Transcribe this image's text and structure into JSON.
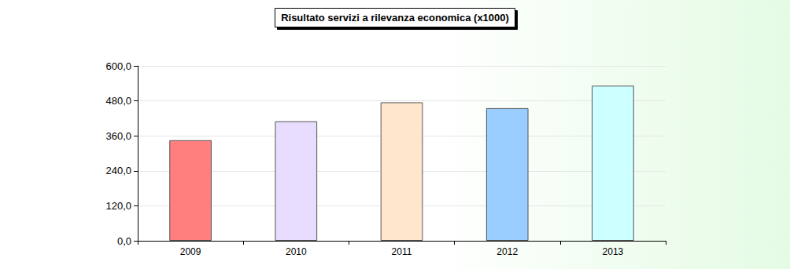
{
  "chart_data": {
    "type": "bar",
    "title": "Risultato servizi a rilevanza economica (x1000)",
    "categories": [
      "2009",
      "2010",
      "2011",
      "2012",
      "2013"
    ],
    "values": [
      345,
      410,
      475,
      455,
      532
    ],
    "colors": [
      "#ff7f7f",
      "#e8dcff",
      "#ffe6cc",
      "#99ccff",
      "#ccffff"
    ],
    "ylim": [
      0,
      600
    ],
    "yticks": [
      {
        "value": 0,
        "label": "0,0"
      },
      {
        "value": 120,
        "label": "120,0"
      },
      {
        "value": 240,
        "label": "240,0"
      },
      {
        "value": 360,
        "label": "360,0"
      },
      {
        "value": 480,
        "label": "480,0"
      },
      {
        "value": 600,
        "label": "600,0"
      }
    ],
    "grid": true
  }
}
